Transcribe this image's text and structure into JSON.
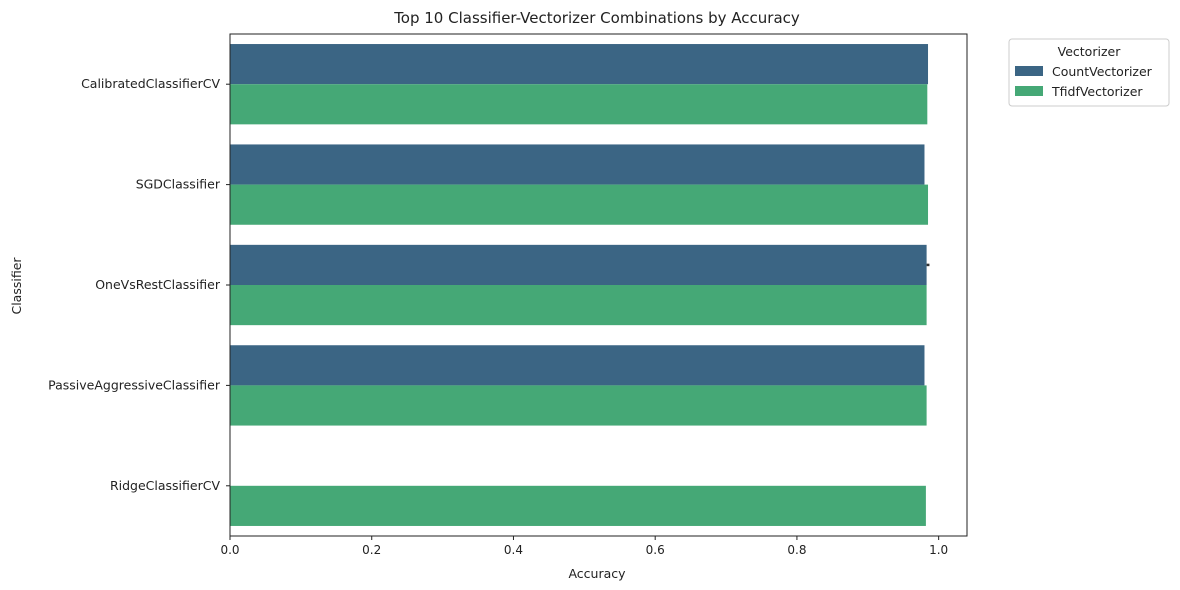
{
  "chart_data": {
    "type": "bar",
    "orientation": "horizontal",
    "title": "Top 10 Classifier-Vectorizer Combinations by Accuracy",
    "xlabel": "Accuracy",
    "ylabel": "Classifier",
    "xlim": [
      0,
      1.04
    ],
    "xticks": [
      "0.0",
      "0.2",
      "0.4",
      "0.6",
      "0.8",
      "1.0"
    ],
    "grid": false,
    "legend_position": "outside-top-right",
    "legend_title": "Vectorizer",
    "categories": [
      "CalibratedClassifierCV",
      "SGDClassifier",
      "OneVsRestClassifier",
      "PassiveAggressiveClassifier",
      "RidgeClassifierCV"
    ],
    "series": [
      {
        "name": "CountVectorizer",
        "color": "#3b6584",
        "values": [
          0.985,
          0.98,
          0.983,
          0.98,
          null
        ],
        "error_upper": [
          null,
          null,
          0.987,
          null,
          null
        ]
      },
      {
        "name": "TfidfVectorizer",
        "color": "#45a876",
        "values": [
          0.984,
          0.985,
          0.983,
          0.983,
          0.982
        ],
        "error_upper": [
          null,
          null,
          null,
          null,
          null
        ]
      }
    ]
  }
}
